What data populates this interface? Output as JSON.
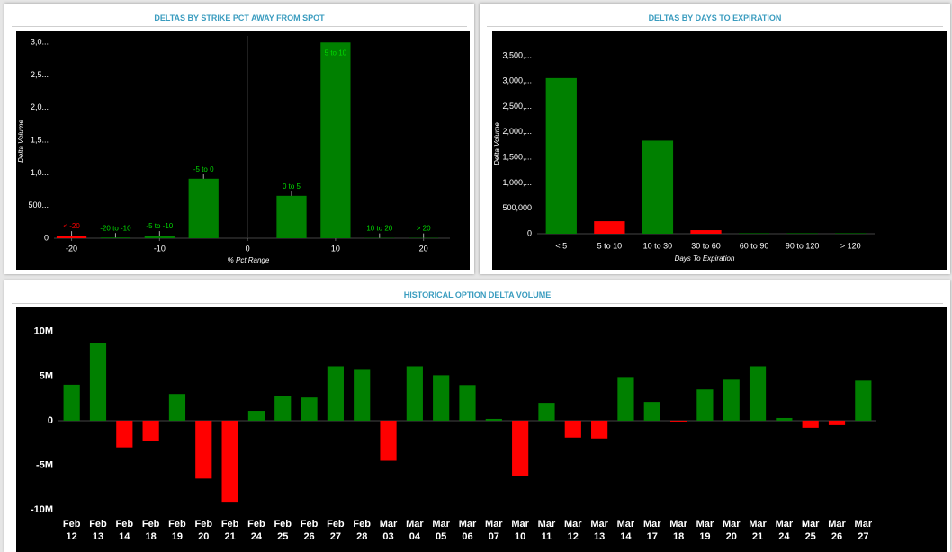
{
  "chart_data": [
    {
      "type": "bar",
      "title": "DELTAS BY STRIKE PCT AWAY FROM SPOT",
      "xlabel": "% Pct Range",
      "ylabel": "Delta Volume",
      "x": [
        -20,
        -15,
        -10,
        -5,
        5,
        10,
        15,
        20
      ],
      "bar_labels": [
        "< -20",
        "-20 to -10",
        "-5 to -10",
        "-5 to 0",
        "0 to 5",
        "5 to 10",
        "10 to 20",
        "> 20"
      ],
      "values": [
        40,
        10,
        40,
        912,
        650,
        3000,
        5,
        5
      ],
      "colors": [
        "#ff0000",
        "#008000",
        "#008000",
        "#008000",
        "#008000",
        "#008000",
        "#008000",
        "#008000"
      ],
      "xlim": [
        -22,
        23
      ],
      "xticks": [
        -20,
        -10,
        0,
        10,
        20
      ],
      "ylim": [
        0,
        3100
      ],
      "yticks": [
        0,
        {
          "value": 500,
          "label": "500..."
        },
        {
          "value": 1000,
          "label": "1,0..."
        },
        {
          "value": 1500,
          "label": "1,5..."
        },
        {
          "value": 2000,
          "label": "2,0..."
        },
        {
          "value": 2500,
          "label": "2,5..."
        },
        {
          "value": 3000,
          "label": "3,0..."
        }
      ]
    },
    {
      "type": "bar",
      "title": "DELTAS BY DAYS TO EXPIRATION",
      "xlabel": "Days To Expiration",
      "ylabel": "Delta Volume",
      "categories": [
        "< 5",
        "5 to 10",
        "10 to 30",
        "30 to 60",
        "60 to 90",
        "90 to 120",
        "> 120"
      ],
      "values": [
        3060000,
        246000,
        1830000,
        70000,
        10000,
        10000,
        10000
      ],
      "colors": [
        "#008000",
        "#ff0000",
        "#008000",
        "#ff0000",
        "#008000",
        "#008000",
        "#008000"
      ],
      "ylim": [
        0,
        3800000
      ],
      "yticks": [
        0,
        {
          "value": 500000,
          "label": "500,000"
        },
        {
          "value": 1000000,
          "label": "1,000,..."
        },
        {
          "value": 1500000,
          "label": "1,500,..."
        },
        {
          "value": 2000000,
          "label": "2,000,..."
        },
        {
          "value": 2500000,
          "label": "2,500,..."
        },
        {
          "value": 3000000,
          "label": "3,000,..."
        },
        {
          "value": 3500000,
          "label": "3,500,..."
        }
      ]
    },
    {
      "type": "bar",
      "title": "HISTORICAL OPTION DELTA VOLUME",
      "categories": [
        "Feb 12",
        "Feb 13",
        "Feb 14",
        "Feb 18",
        "Feb 19",
        "Feb 20",
        "Feb 21",
        "Feb 24",
        "Feb 25",
        "Feb 26",
        "Feb 27",
        "Feb 28",
        "Mar 03",
        "Mar 04",
        "Mar 05",
        "Mar 06",
        "Mar 07",
        "Mar 10",
        "Mar 11",
        "Mar 12",
        "Mar 13",
        "Mar 14",
        "Mar 17",
        "Mar 18",
        "Mar 19",
        "Mar 20",
        "Mar 21",
        "Mar 24",
        "Mar 25",
        "Mar 26",
        "Mar 27"
      ],
      "values": [
        4040000,
        8700000,
        -3000000,
        -2300000,
        3000000,
        -6500000,
        -9100000,
        1100000,
        2800000,
        2600000,
        6100000,
        5700000,
        -4500000,
        6100000,
        5100000,
        4000000,
        200000,
        -6200000,
        2000000,
        -1900000,
        -2000000,
        4900000,
        2100000,
        -100000,
        3500000,
        4600000,
        6100000,
        300000,
        -800000,
        -500000,
        4500000
      ],
      "positive_color": "#008000",
      "negative_color": "#ff0000",
      "ylim": [
        -10500000,
        11900000
      ],
      "yticks": [
        {
          "value": -10000000,
          "label": "-10M"
        },
        {
          "value": -5000000,
          "label": "-5M"
        },
        0,
        {
          "value": 5000000,
          "label": "5M"
        },
        {
          "value": 10000000,
          "label": "10M"
        }
      ]
    }
  ]
}
